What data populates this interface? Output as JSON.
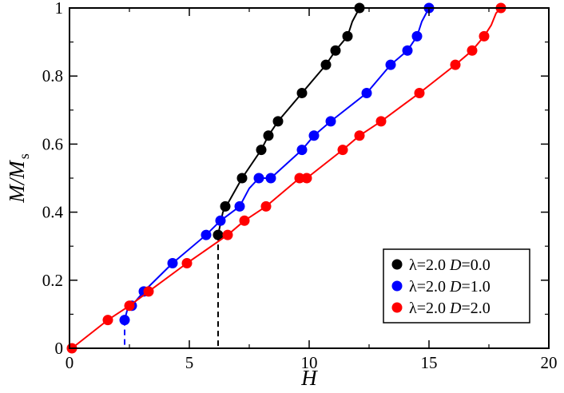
{
  "chart_data": {
    "type": "scatter",
    "title": "",
    "xlabel": "H",
    "ylabel": {
      "main": "M/M",
      "subscript": "s"
    },
    "xlim": [
      0,
      20
    ],
    "ylim": [
      0,
      1
    ],
    "xticks": [
      0,
      5,
      10,
      15,
      20
    ],
    "yticks": [
      0,
      0.2,
      0.4,
      0.6,
      0.8,
      1
    ],
    "xtick_labels": [
      "0",
      "5",
      "10",
      "15",
      "20"
    ],
    "ytick_labels": [
      "0",
      "0.2",
      "0.4",
      "0.6",
      "0.8",
      "1"
    ],
    "grid": false,
    "legend_position": "bottom-right",
    "series": [
      {
        "name": "λ=2.0 D=0.0",
        "name_parts": [
          "λ=2.0 ",
          "D",
          "=0.0"
        ],
        "color": "#000000",
        "points": [
          [
            6.2,
            0.333
          ],
          [
            6.5,
            0.417
          ],
          [
            7.2,
            0.5
          ],
          [
            8.0,
            0.583
          ],
          [
            8.3,
            0.625
          ],
          [
            8.7,
            0.667
          ],
          [
            9.7,
            0.75
          ],
          [
            10.7,
            0.833
          ],
          [
            11.1,
            0.875
          ],
          [
            11.6,
            0.917
          ],
          [
            12.1,
            1.0
          ]
        ],
        "line": [
          [
            6.2,
            0.333
          ],
          [
            6.4,
            0.4
          ],
          [
            6.6,
            0.425
          ],
          [
            7.2,
            0.5
          ],
          [
            8.0,
            0.583
          ],
          [
            8.3,
            0.625
          ],
          [
            8.7,
            0.667
          ],
          [
            9.7,
            0.75
          ],
          [
            10.7,
            0.833
          ],
          [
            11.1,
            0.875
          ],
          [
            11.6,
            0.917
          ],
          [
            11.8,
            0.96
          ],
          [
            12.1,
            1.0
          ]
        ],
        "dashed_drop": [
          6.2,
          0.333
        ]
      },
      {
        "name": "λ=2.0 D=1.0",
        "name_parts": [
          "λ=2.0 ",
          "D",
          "=1.0"
        ],
        "color": "#0000ff",
        "points": [
          [
            2.3,
            0.083
          ],
          [
            2.6,
            0.125
          ],
          [
            3.1,
            0.167
          ],
          [
            4.3,
            0.25
          ],
          [
            5.7,
            0.333
          ],
          [
            6.3,
            0.375
          ],
          [
            7.1,
            0.417
          ],
          [
            7.9,
            0.5
          ],
          [
            8.4,
            0.5
          ],
          [
            9.7,
            0.583
          ],
          [
            10.2,
            0.625
          ],
          [
            10.9,
            0.667
          ],
          [
            12.4,
            0.75
          ],
          [
            13.4,
            0.833
          ],
          [
            14.1,
            0.875
          ],
          [
            14.5,
            0.917
          ],
          [
            15.0,
            1.0
          ]
        ],
        "line": [
          [
            2.3,
            0.083
          ],
          [
            2.4,
            0.11
          ],
          [
            2.6,
            0.125
          ],
          [
            3.1,
            0.167
          ],
          [
            4.3,
            0.25
          ],
          [
            5.7,
            0.333
          ],
          [
            6.3,
            0.375
          ],
          [
            7.1,
            0.417
          ],
          [
            7.5,
            0.47
          ],
          [
            7.9,
            0.5
          ],
          [
            8.4,
            0.5
          ],
          [
            9.7,
            0.583
          ],
          [
            10.2,
            0.625
          ],
          [
            10.9,
            0.667
          ],
          [
            12.4,
            0.75
          ],
          [
            13.4,
            0.833
          ],
          [
            14.1,
            0.875
          ],
          [
            14.5,
            0.917
          ],
          [
            14.7,
            0.96
          ],
          [
            15.0,
            1.0
          ]
        ],
        "dashed_drop": [
          2.3,
          0.083
        ]
      },
      {
        "name": "λ=2.0 D=2.0",
        "name_parts": [
          "λ=2.0 ",
          "D",
          "=2.0"
        ],
        "color": "#ff0000",
        "points": [
          [
            0.1,
            0.0
          ],
          [
            1.6,
            0.083
          ],
          [
            2.5,
            0.125
          ],
          [
            3.3,
            0.167
          ],
          [
            4.9,
            0.25
          ],
          [
            6.6,
            0.333
          ],
          [
            7.3,
            0.375
          ],
          [
            8.2,
            0.417
          ],
          [
            9.6,
            0.5
          ],
          [
            9.9,
            0.5
          ],
          [
            11.4,
            0.583
          ],
          [
            12.1,
            0.625
          ],
          [
            13.0,
            0.667
          ],
          [
            14.6,
            0.75
          ],
          [
            16.1,
            0.833
          ],
          [
            16.8,
            0.875
          ],
          [
            17.3,
            0.917
          ],
          [
            18.0,
            1.0
          ]
        ],
        "line": [
          [
            0.0,
            0.0
          ],
          [
            0.1,
            0.0
          ],
          [
            1.6,
            0.083
          ],
          [
            2.5,
            0.125
          ],
          [
            3.3,
            0.167
          ],
          [
            4.9,
            0.25
          ],
          [
            6.6,
            0.333
          ],
          [
            7.3,
            0.375
          ],
          [
            8.2,
            0.417
          ],
          [
            9.6,
            0.5
          ],
          [
            9.9,
            0.5
          ],
          [
            11.4,
            0.583
          ],
          [
            12.1,
            0.625
          ],
          [
            13.0,
            0.667
          ],
          [
            14.6,
            0.75
          ],
          [
            16.1,
            0.833
          ],
          [
            16.8,
            0.875
          ],
          [
            17.3,
            0.917
          ],
          [
            17.6,
            0.95
          ],
          [
            17.8,
            0.985
          ],
          [
            18.0,
            1.0
          ]
        ]
      }
    ]
  }
}
